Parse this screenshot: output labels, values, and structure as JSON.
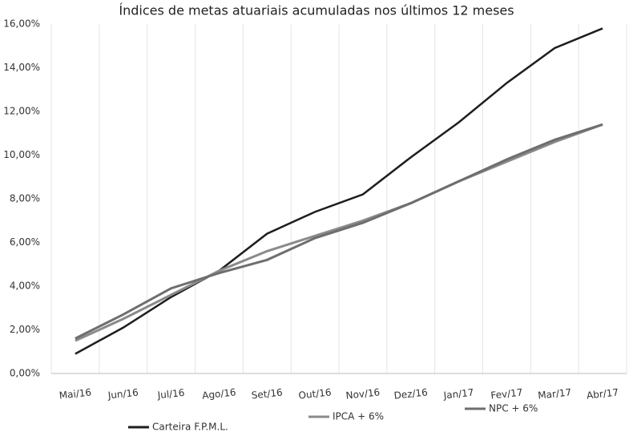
{
  "chart_data": {
    "type": "line",
    "title": "Índices de metas atuariais acumuladas nos últimos 12 meses",
    "categories": [
      "Mai/16",
      "Jun/16",
      "Jul/16",
      "Ago/16",
      "Set/16",
      "Out/16",
      "Nov/16",
      "Dez/16",
      "Jan/17",
      "Fev/17",
      "Mar/17",
      "Abr/17"
    ],
    "series": [
      {
        "name": "Carteira F.P.M.L.",
        "color": "#1e1e1e",
        "values": [
          0.9,
          2.1,
          3.5,
          4.7,
          6.4,
          7.4,
          8.2,
          9.9,
          11.5,
          13.3,
          14.9,
          15.8
        ]
      },
      {
        "name": "IPCA + 6%",
        "color": "#8a8a8a",
        "values": [
          1.5,
          2.5,
          3.6,
          4.7,
          5.6,
          6.3,
          7.0,
          7.8,
          8.8,
          9.7,
          10.6,
          11.4
        ]
      },
      {
        "name": "NPC + 6%",
        "color": "#6e6e6e",
        "values": [
          1.6,
          2.7,
          3.9,
          4.6,
          5.2,
          6.2,
          6.9,
          7.8,
          8.8,
          9.8,
          10.7,
          11.4
        ]
      }
    ],
    "ylim": [
      0,
      16
    ],
    "yticks": [
      {
        "value": 0,
        "label": "0,00%"
      },
      {
        "value": 2,
        "label": "2,00%"
      },
      {
        "value": 4,
        "label": "4,00%"
      },
      {
        "value": 6,
        "label": "6,00%"
      },
      {
        "value": 8,
        "label": "8,00%"
      },
      {
        "value": 10,
        "label": "10,00%"
      },
      {
        "value": 12,
        "label": "12,00%"
      },
      {
        "value": 14,
        "label": "14,00%"
      },
      {
        "value": 16,
        "label": "16,00%"
      }
    ],
    "grid": true
  }
}
